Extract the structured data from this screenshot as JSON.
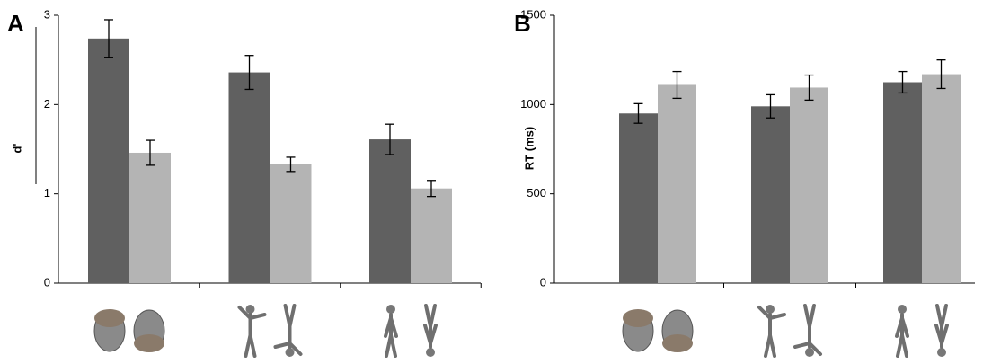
{
  "chart_data": [
    {
      "type": "bar",
      "label": "A",
      "y_label": "d'",
      "categories": [
        null,
        null,
        null
      ],
      "series": [
        {
          "color": "#606060",
          "values": [
            2.74,
            2.36,
            1.61
          ],
          "errors": [
            0.21,
            0.19,
            0.17
          ]
        },
        {
          "color": "#b4b4b4",
          "values": [
            1.46,
            1.33,
            1.06
          ],
          "errors": [
            0.14,
            0.08,
            0.09
          ]
        }
      ],
      "ylim": [
        0,
        3
      ],
      "yticks": [
        0,
        1,
        2,
        3
      ]
    },
    {
      "type": "bar",
      "label": "B",
      "y_label": "RT (ms)",
      "categories": [
        null,
        null,
        null
      ],
      "series": [
        {
          "color": "#606060",
          "values": [
            950,
            990,
            1125
          ],
          "errors": [
            55,
            65,
            60
          ]
        },
        {
          "color": "#b4b4b4",
          "values": [
            1110,
            1095,
            1170
          ],
          "errors": [
            75,
            70,
            80
          ]
        }
      ],
      "ylim": [
        0,
        1500
      ],
      "yticks": [
        0,
        500,
        1000,
        1500
      ]
    }
  ]
}
